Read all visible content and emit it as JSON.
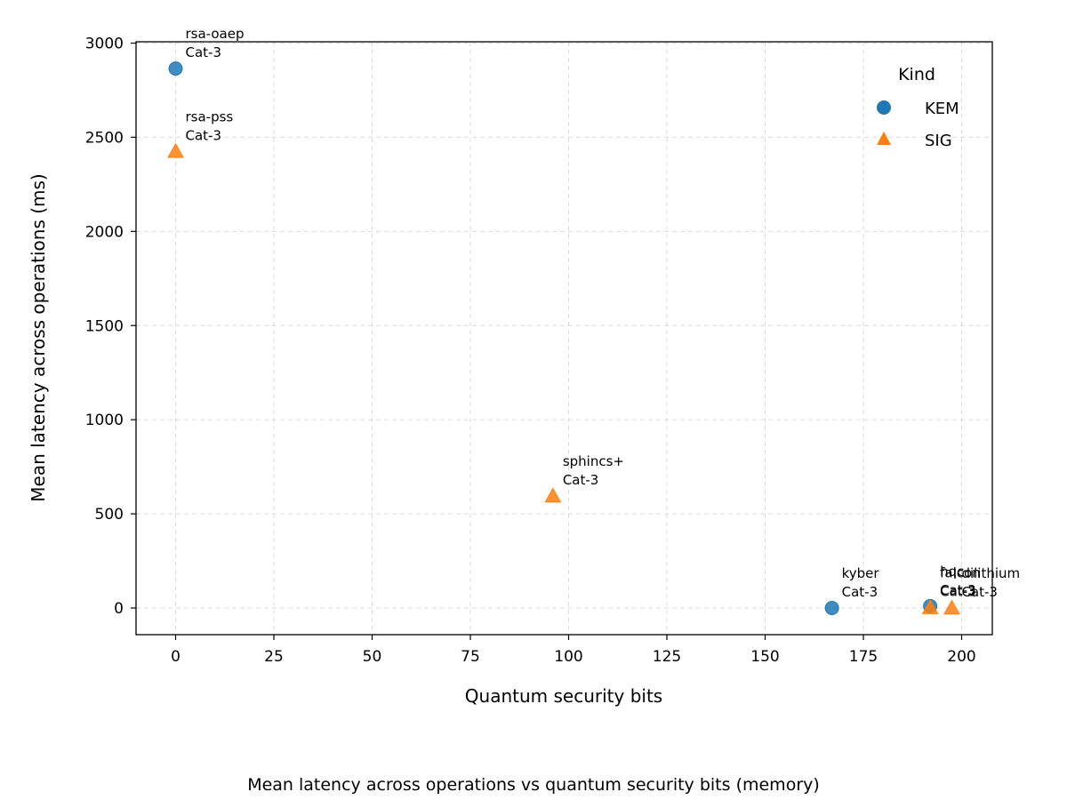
{
  "chart_data": {
    "type": "scatter",
    "caption": "Mean latency across operations vs quantum security bits (memory)",
    "xlabel": "Quantum security bits",
    "ylabel": "Mean latency across operations (ms)",
    "xlim": [
      -10,
      207
    ],
    "ylim": [
      -140,
      3020
    ],
    "xticks": [
      0,
      25,
      50,
      75,
      100,
      125,
      150,
      175,
      200
    ],
    "yticks": [
      0,
      500,
      1000,
      1500,
      2000,
      2500,
      3000
    ],
    "grid": true,
    "legend": {
      "title": "Kind",
      "placement": "top-right"
    },
    "series": [
      {
        "name": "KEM",
        "marker": "circle",
        "color": "#1f77b4",
        "points": [
          {
            "x": 0,
            "y": 2865,
            "label": "rsa-oaep",
            "sublabel": "Cat-3"
          },
          {
            "x": 167,
            "y": 0,
            "label": "kyber",
            "sublabel": "Cat-3"
          },
          {
            "x": 192,
            "y": 10,
            "label": "hqc",
            "sublabel": "Cat-3"
          }
        ]
      },
      {
        "name": "SIG",
        "marker": "triangle",
        "color": "#ff7f0e",
        "points": [
          {
            "x": 0,
            "y": 2425,
            "label": "rsa-pss",
            "sublabel": "Cat-3"
          },
          {
            "x": 96,
            "y": 595,
            "label": "sphincs+",
            "sublabel": "Cat-3"
          },
          {
            "x": 192,
            "y": 2,
            "label": "falcon",
            "sublabel": "Cat-3"
          },
          {
            "x": 197.5,
            "y": 0,
            "label": "dilithium",
            "sublabel": "Cat-3"
          }
        ]
      }
    ]
  }
}
